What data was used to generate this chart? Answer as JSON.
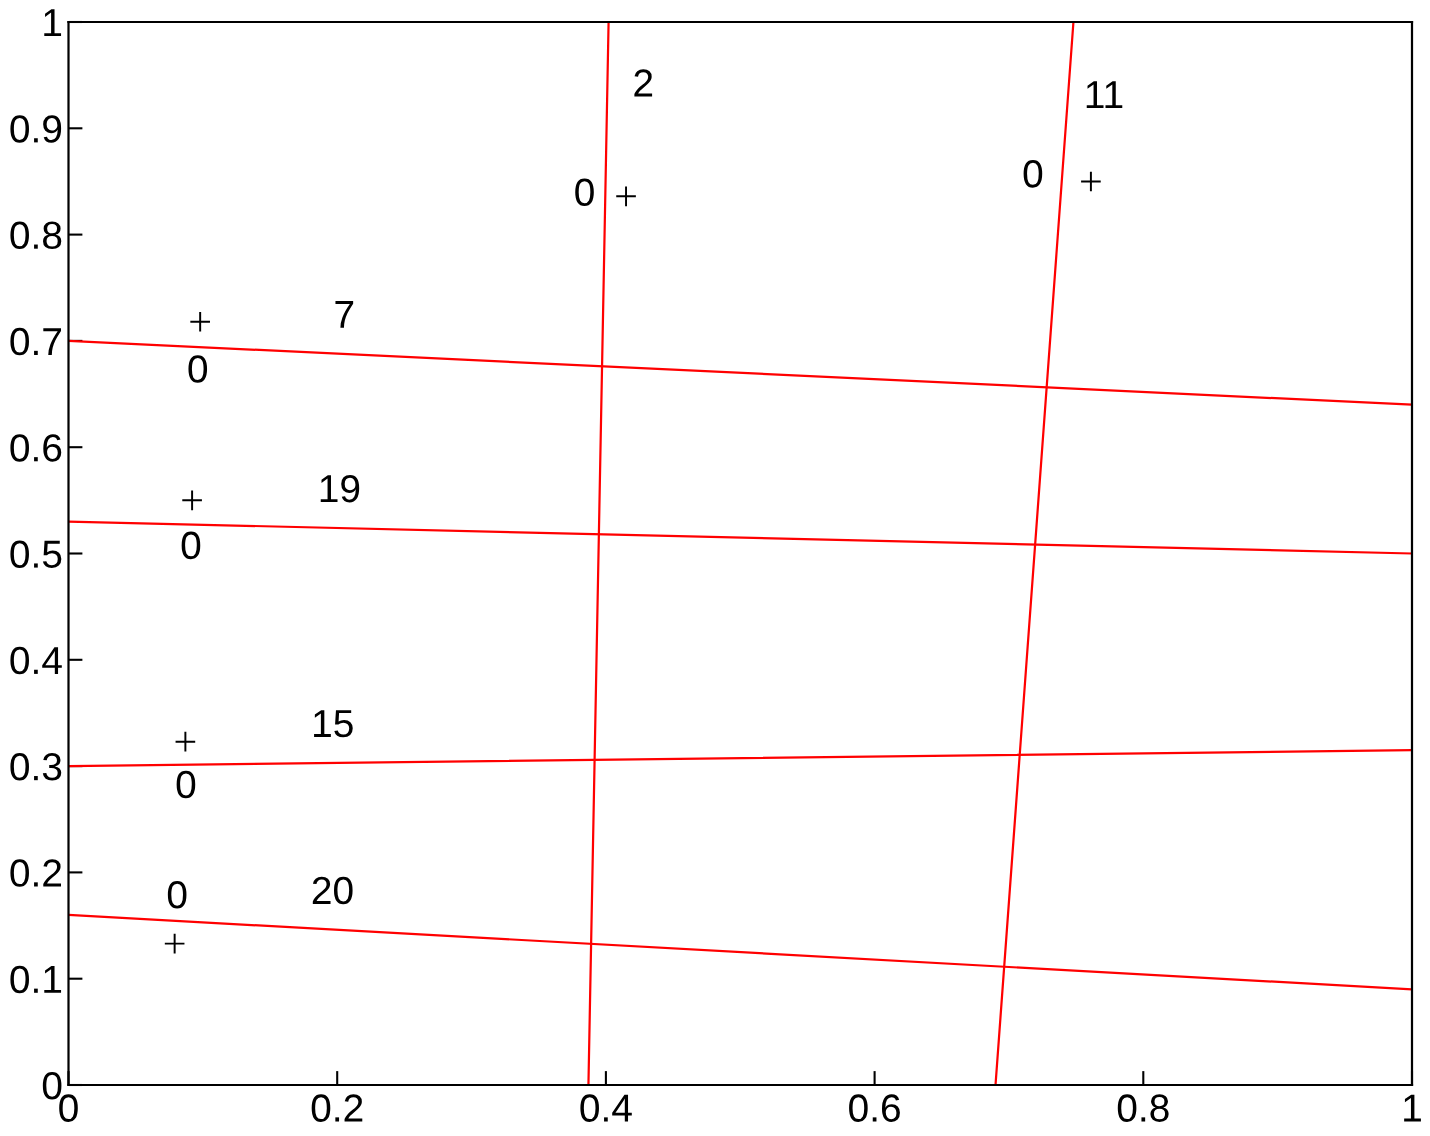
{
  "chart_data": {
    "type": "line",
    "xlim": [
      0,
      1
    ],
    "ylim": [
      0,
      1
    ],
    "xticks": [
      0,
      0.2,
      0.4,
      0.6,
      0.8,
      1
    ],
    "yticks": [
      0,
      0.1,
      0.2,
      0.3,
      0.4,
      0.5,
      0.6,
      0.7,
      0.8,
      0.9,
      1
    ],
    "line_style": "solid",
    "series": [
      {
        "color": "#ff0000",
        "x": [
          0,
          1
        ],
        "values": [
          0.7,
          0.64
        ]
      },
      {
        "color": "#ff0000",
        "x": [
          0,
          1
        ],
        "values": [
          0.53,
          0.5
        ]
      },
      {
        "color": "#ff0000",
        "x": [
          0,
          1
        ],
        "values": [
          0.3,
          0.315
        ]
      },
      {
        "color": "#ff0000",
        "x": [
          0,
          1
        ],
        "values": [
          0.16,
          0.09
        ]
      },
      {
        "color": "#ff0000",
        "x": [
          0.387,
          0.402
        ],
        "values": [
          0,
          1
        ]
      },
      {
        "color": "#ff0000",
        "x": [
          0.69,
          0.748
        ],
        "values": [
          0,
          1
        ]
      },
      {
        "type": "scatter",
        "color": "#000000",
        "marker": "cross",
        "x": [
          0.098,
          0.092,
          0.087,
          0.079,
          0.415,
          0.761
        ],
        "values": [
          0.718,
          0.55,
          0.323,
          0.133,
          0.836,
          0.85
        ]
      }
    ],
    "annotations": [
      {
        "text": "7",
        "x": 0.204,
        "y": 0.688
      },
      {
        "text": "0",
        "x": 0.098,
        "y": 0.718
      },
      {
        "text": "19",
        "x": 0.201,
        "y": 0.524
      },
      {
        "text": "0",
        "x": 0.092,
        "y": 0.55
      },
      {
        "text": "15",
        "x": 0.197,
        "y": 0.303
      },
      {
        "text": "0",
        "x": 0.087,
        "y": 0.323
      },
      {
        "text": "0",
        "x": 0.079,
        "y": 0.133
      },
      {
        "text": "20",
        "x": 0.195,
        "y": 0.146
      },
      {
        "text": "2",
        "x": 0.401,
        "y": 0.94
      },
      {
        "text": "0",
        "x": 0.415,
        "y": 0.836
      },
      {
        "text": "11",
        "x": 0.744,
        "y": 0.931
      },
      {
        "text": "0",
        "x": 0.761,
        "y": 0.85
      }
    ]
  }
}
